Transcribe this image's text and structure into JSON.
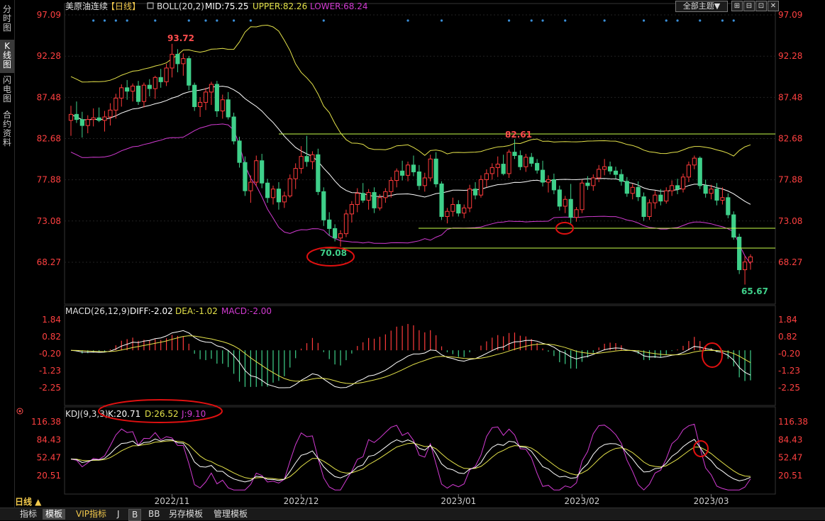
{
  "sidebar": {
    "tabs": [
      {
        "label": "分时图",
        "active": false
      },
      {
        "label": "K线图",
        "active": true
      },
      {
        "label": "闪电图",
        "active": false
      },
      {
        "label": "合约资料",
        "active": false
      }
    ]
  },
  "header": {
    "instrument": "美原油连续",
    "period": "【日线】",
    "indicator": "BOLL(20,2)",
    "mid": "MID:75.25",
    "upper": "UPPER:82.26",
    "lower": "LOWER:68.24",
    "theme_button": "全部主题▼",
    "window_buttons": [
      "⊞",
      "⊟",
      "⊡",
      "✕"
    ]
  },
  "colors": {
    "up": "#ff3b3b",
    "down": "#3fd08a",
    "mid": "#ffffff",
    "upper": "#e5e34a",
    "lower": "#d33bd3",
    "axis_text": "#ff4040",
    "grid": "#2a2a2a",
    "support": "#c8ff4a"
  },
  "price_axis": {
    "labels": [
      "97.09",
      "92.28",
      "87.48",
      "82.68",
      "77.88",
      "73.08",
      "68.27"
    ]
  },
  "annotations": {
    "high": "93.72",
    "low_dec": "70.08",
    "high_jan": "82.61",
    "low_mar": "65.67"
  },
  "macd": {
    "title": "MACD(26,12,9)",
    "diff": "DIFF:-2.02",
    "dea": "DEA:-1.02",
    "macd": "MACD:-2.00",
    "axis_labels": [
      "1.84",
      "0.82",
      "-0.20",
      "-1.23",
      "-2.25"
    ]
  },
  "kdj": {
    "title": "KDJ(9,3,3)",
    "k": "K:20.71",
    "d": "D:26.52",
    "j": "J:9.10",
    "axis_labels": [
      "116.38",
      "84.43",
      "52.47",
      "20.51"
    ]
  },
  "date_axis": {
    "labels": [
      "2022/11",
      "2022/12",
      "2023/01",
      "2023/02",
      "2023/03"
    ]
  },
  "bottom_bar": {
    "period_label": "日线 ▲",
    "tabs": [
      "指标",
      "模板",
      "VIP指标",
      "J",
      "B",
      "BB",
      "另存模板",
      "管理模板"
    ]
  },
  "chart_data": {
    "type": "candlestick",
    "series_note": "",
    "candles": [
      {
        "o": 84.8,
        "h": 86.5,
        "l": 83.0,
        "c": 85.5
      },
      {
        "o": 85.5,
        "h": 87.0,
        "l": 84.5,
        "c": 84.9
      },
      {
        "o": 84.9,
        "h": 85.8,
        "l": 82.8,
        "c": 84.2
      },
      {
        "o": 84.2,
        "h": 85.4,
        "l": 83.3,
        "c": 84.9
      },
      {
        "o": 84.9,
        "h": 86.2,
        "l": 84.1,
        "c": 85.1
      },
      {
        "o": 85.1,
        "h": 86.3,
        "l": 84.6,
        "c": 84.8
      },
      {
        "o": 84.8,
        "h": 85.9,
        "l": 83.5,
        "c": 85.2
      },
      {
        "o": 85.2,
        "h": 86.8,
        "l": 84.2,
        "c": 86.0
      },
      {
        "o": 86.0,
        "h": 87.9,
        "l": 85.0,
        "c": 87.4
      },
      {
        "o": 87.4,
        "h": 89.0,
        "l": 86.4,
        "c": 88.6
      },
      {
        "o": 88.6,
        "h": 89.5,
        "l": 87.2,
        "c": 88.2
      },
      {
        "o": 88.2,
        "h": 89.1,
        "l": 87.0,
        "c": 88.8
      },
      {
        "o": 88.8,
        "h": 89.4,
        "l": 86.6,
        "c": 87.0
      },
      {
        "o": 87.0,
        "h": 89.2,
        "l": 86.3,
        "c": 88.9
      },
      {
        "o": 88.9,
        "h": 89.6,
        "l": 87.6,
        "c": 88.5
      },
      {
        "o": 88.5,
        "h": 90.0,
        "l": 87.3,
        "c": 89.8
      },
      {
        "o": 89.8,
        "h": 90.8,
        "l": 88.6,
        "c": 89.3
      },
      {
        "o": 89.3,
        "h": 91.4,
        "l": 88.8,
        "c": 90.9
      },
      {
        "o": 90.9,
        "h": 93.72,
        "l": 89.8,
        "c": 92.5
      },
      {
        "o": 92.5,
        "h": 93.1,
        "l": 90.4,
        "c": 91.4
      },
      {
        "o": 91.4,
        "h": 92.6,
        "l": 90.0,
        "c": 92.0
      },
      {
        "o": 92.0,
        "h": 92.3,
        "l": 88.3,
        "c": 88.9
      },
      {
        "o": 88.9,
        "h": 89.2,
        "l": 85.9,
        "c": 86.4
      },
      {
        "o": 86.4,
        "h": 87.5,
        "l": 85.2,
        "c": 86.9
      },
      {
        "o": 86.9,
        "h": 88.6,
        "l": 86.0,
        "c": 88.1
      },
      {
        "o": 88.1,
        "h": 89.3,
        "l": 86.6,
        "c": 89.0
      },
      {
        "o": 89.0,
        "h": 89.4,
        "l": 85.2,
        "c": 85.9
      },
      {
        "o": 85.9,
        "h": 87.8,
        "l": 85.0,
        "c": 87.2
      },
      {
        "o": 87.2,
        "h": 88.1,
        "l": 84.9,
        "c": 85.2
      },
      {
        "o": 85.2,
        "h": 85.7,
        "l": 82.0,
        "c": 82.4
      },
      {
        "o": 82.4,
        "h": 82.9,
        "l": 79.3,
        "c": 79.9
      },
      {
        "o": 79.9,
        "h": 80.6,
        "l": 76.0,
        "c": 76.6
      },
      {
        "o": 76.6,
        "h": 78.4,
        "l": 75.2,
        "c": 77.6
      },
      {
        "o": 77.6,
        "h": 80.7,
        "l": 77.1,
        "c": 80.1
      },
      {
        "o": 80.1,
        "h": 80.9,
        "l": 76.9,
        "c": 77.5
      },
      {
        "o": 77.5,
        "h": 78.0,
        "l": 75.2,
        "c": 75.8
      },
      {
        "o": 75.8,
        "h": 77.2,
        "l": 75.0,
        "c": 76.8
      },
      {
        "o": 76.8,
        "h": 77.6,
        "l": 74.4,
        "c": 75.3
      },
      {
        "o": 75.3,
        "h": 76.5,
        "l": 74.6,
        "c": 76.0
      },
      {
        "o": 76.0,
        "h": 78.5,
        "l": 75.8,
        "c": 78.0
      },
      {
        "o": 78.0,
        "h": 79.8,
        "l": 76.8,
        "c": 79.2
      },
      {
        "o": 79.2,
        "h": 81.8,
        "l": 78.6,
        "c": 80.6
      },
      {
        "o": 80.6,
        "h": 83.0,
        "l": 79.4,
        "c": 80.0
      },
      {
        "o": 80.0,
        "h": 81.2,
        "l": 79.1,
        "c": 80.8
      },
      {
        "o": 80.8,
        "h": 81.5,
        "l": 76.1,
        "c": 76.5
      },
      {
        "o": 76.5,
        "h": 77.0,
        "l": 72.5,
        "c": 73.2
      },
      {
        "o": 73.2,
        "h": 74.1,
        "l": 71.4,
        "c": 72.2
      },
      {
        "o": 72.2,
        "h": 72.7,
        "l": 70.7,
        "c": 71.1
      },
      {
        "o": 71.1,
        "h": 72.0,
        "l": 70.08,
        "c": 71.6
      },
      {
        "o": 71.6,
        "h": 74.4,
        "l": 71.2,
        "c": 73.9
      },
      {
        "o": 73.9,
        "h": 75.4,
        "l": 72.9,
        "c": 75.0
      },
      {
        "o": 75.0,
        "h": 76.9,
        "l": 74.1,
        "c": 76.3
      },
      {
        "o": 76.3,
        "h": 77.5,
        "l": 75.2,
        "c": 75.5
      },
      {
        "o": 75.5,
        "h": 76.8,
        "l": 74.4,
        "c": 76.4
      },
      {
        "o": 76.4,
        "h": 77.0,
        "l": 74.0,
        "c": 74.6
      },
      {
        "o": 74.6,
        "h": 76.2,
        "l": 74.3,
        "c": 75.8
      },
      {
        "o": 75.8,
        "h": 76.9,
        "l": 75.2,
        "c": 76.5
      },
      {
        "o": 76.5,
        "h": 78.2,
        "l": 75.8,
        "c": 77.8
      },
      {
        "o": 77.8,
        "h": 79.2,
        "l": 77.0,
        "c": 78.9
      },
      {
        "o": 78.9,
        "h": 80.1,
        "l": 77.8,
        "c": 78.4
      },
      {
        "o": 78.4,
        "h": 80.0,
        "l": 77.7,
        "c": 79.6
      },
      {
        "o": 79.6,
        "h": 80.7,
        "l": 78.3,
        "c": 78.8
      },
      {
        "o": 78.8,
        "h": 79.6,
        "l": 76.7,
        "c": 77.2
      },
      {
        "o": 77.2,
        "h": 78.7,
        "l": 76.5,
        "c": 78.1
      },
      {
        "o": 78.1,
        "h": 80.8,
        "l": 77.7,
        "c": 80.3
      },
      {
        "o": 80.3,
        "h": 81.1,
        "l": 77.0,
        "c": 77.4
      },
      {
        "o": 77.4,
        "h": 77.7,
        "l": 73.2,
        "c": 73.6
      },
      {
        "o": 73.6,
        "h": 74.6,
        "l": 72.8,
        "c": 74.2
      },
      {
        "o": 74.2,
        "h": 75.8,
        "l": 73.6,
        "c": 75.0
      },
      {
        "o": 75.0,
        "h": 75.5,
        "l": 73.6,
        "c": 74.0
      },
      {
        "o": 74.0,
        "h": 75.0,
        "l": 73.4,
        "c": 74.6
      },
      {
        "o": 74.6,
        "h": 77.3,
        "l": 74.1,
        "c": 76.8
      },
      {
        "o": 76.8,
        "h": 77.6,
        "l": 75.6,
        "c": 76.1
      },
      {
        "o": 76.1,
        "h": 78.4,
        "l": 75.8,
        "c": 77.9
      },
      {
        "o": 77.9,
        "h": 79.1,
        "l": 77.0,
        "c": 78.6
      },
      {
        "o": 78.6,
        "h": 79.8,
        "l": 77.9,
        "c": 79.3
      },
      {
        "o": 79.3,
        "h": 80.6,
        "l": 78.2,
        "c": 79.7
      },
      {
        "o": 79.7,
        "h": 80.8,
        "l": 78.4,
        "c": 78.6
      },
      {
        "o": 78.6,
        "h": 81.4,
        "l": 78.1,
        "c": 81.1
      },
      {
        "o": 81.1,
        "h": 82.61,
        "l": 80.3,
        "c": 80.7
      },
      {
        "o": 80.7,
        "h": 81.3,
        "l": 79.0,
        "c": 79.4
      },
      {
        "o": 79.4,
        "h": 80.9,
        "l": 78.8,
        "c": 80.5
      },
      {
        "o": 80.5,
        "h": 81.0,
        "l": 79.4,
        "c": 79.8
      },
      {
        "o": 79.8,
        "h": 80.3,
        "l": 78.6,
        "c": 79.0
      },
      {
        "o": 79.0,
        "h": 80.1,
        "l": 77.1,
        "c": 77.6
      },
      {
        "o": 77.6,
        "h": 78.4,
        "l": 76.4,
        "c": 77.9
      },
      {
        "o": 77.9,
        "h": 78.6,
        "l": 76.2,
        "c": 76.7
      },
      {
        "o": 76.7,
        "h": 77.2,
        "l": 74.3,
        "c": 74.8
      },
      {
        "o": 74.8,
        "h": 76.0,
        "l": 74.0,
        "c": 75.6
      },
      {
        "o": 75.6,
        "h": 77.4,
        "l": 72.8,
        "c": 73.5
      },
      {
        "o": 73.5,
        "h": 74.7,
        "l": 73.0,
        "c": 74.4
      },
      {
        "o": 74.4,
        "h": 77.9,
        "l": 74.0,
        "c": 77.5
      },
      {
        "o": 77.5,
        "h": 78.3,
        "l": 76.7,
        "c": 77.2
      },
      {
        "o": 77.2,
        "h": 78.5,
        "l": 76.6,
        "c": 78.1
      },
      {
        "o": 78.1,
        "h": 79.6,
        "l": 77.6,
        "c": 79.1
      },
      {
        "o": 79.1,
        "h": 80.3,
        "l": 78.4,
        "c": 79.4
      },
      {
        "o": 79.4,
        "h": 80.0,
        "l": 78.5,
        "c": 78.9
      },
      {
        "o": 78.9,
        "h": 79.4,
        "l": 78.0,
        "c": 78.5
      },
      {
        "o": 78.5,
        "h": 79.1,
        "l": 77.2,
        "c": 77.7
      },
      {
        "o": 77.7,
        "h": 78.2,
        "l": 75.9,
        "c": 76.3
      },
      {
        "o": 76.3,
        "h": 77.4,
        "l": 75.6,
        "c": 77.0
      },
      {
        "o": 77.0,
        "h": 77.7,
        "l": 75.4,
        "c": 75.9
      },
      {
        "o": 75.9,
        "h": 76.4,
        "l": 73.1,
        "c": 73.6
      },
      {
        "o": 73.6,
        "h": 75.6,
        "l": 73.2,
        "c": 75.2
      },
      {
        "o": 75.2,
        "h": 76.6,
        "l": 74.5,
        "c": 76.1
      },
      {
        "o": 76.1,
        "h": 76.8,
        "l": 74.9,
        "c": 75.4
      },
      {
        "o": 75.4,
        "h": 77.0,
        "l": 75.1,
        "c": 76.6
      },
      {
        "o": 76.6,
        "h": 77.8,
        "l": 76.0,
        "c": 77.2
      },
      {
        "o": 77.2,
        "h": 78.0,
        "l": 76.2,
        "c": 76.8
      },
      {
        "o": 76.8,
        "h": 78.6,
        "l": 76.4,
        "c": 78.2
      },
      {
        "o": 78.2,
        "h": 80.0,
        "l": 77.6,
        "c": 79.6
      },
      {
        "o": 79.6,
        "h": 80.7,
        "l": 79.1,
        "c": 80.4
      },
      {
        "o": 80.4,
        "h": 80.6,
        "l": 76.8,
        "c": 77.2
      },
      {
        "o": 77.2,
        "h": 77.9,
        "l": 75.8,
        "c": 76.3
      },
      {
        "o": 76.3,
        "h": 77.3,
        "l": 75.6,
        "c": 76.8
      },
      {
        "o": 76.8,
        "h": 77.5,
        "l": 74.9,
        "c": 75.5
      },
      {
        "o": 75.5,
        "h": 77.0,
        "l": 75.0,
        "c": 75.8
      },
      {
        "o": 75.8,
        "h": 76.3,
        "l": 73.4,
        "c": 73.8
      },
      {
        "o": 73.8,
        "h": 74.2,
        "l": 70.9,
        "c": 71.2
      },
      {
        "o": 71.2,
        "h": 71.6,
        "l": 66.9,
        "c": 67.4
      },
      {
        "o": 67.4,
        "h": 69.0,
        "l": 65.67,
        "c": 68.3
      },
      {
        "o": 68.3,
        "h": 69.2,
        "l": 67.4,
        "c": 68.9
      }
    ]
  }
}
